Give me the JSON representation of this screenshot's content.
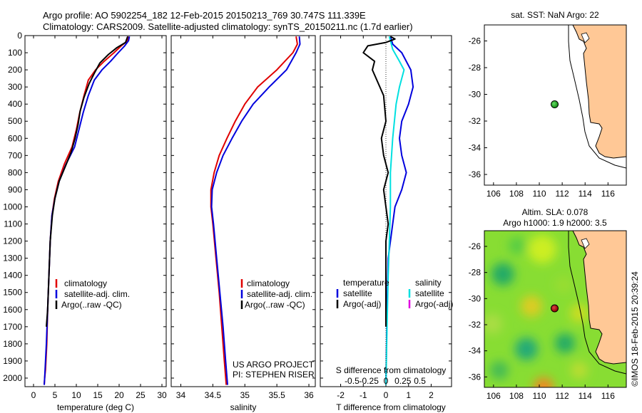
{
  "header": {
    "line1": "Argo profile: AO 5902254_182 12-Feb-2015 20150213_769 30.747S 111.339E",
    "line2": "Climatology: CARS2009. Satellite-adjusted climatology: synTS_20150211.nc (1.7d earlier)"
  },
  "colors": {
    "clim": "#e00000",
    "sat": "#0000dd",
    "argo": "#000000",
    "sat_s": "#00e0e0",
    "argo_s": "#e000e0",
    "land": "#ffc896",
    "float": "#22aa22"
  },
  "credit": {
    "project": "US ARGO PROJECT",
    "pi": "PI: STEPHEN RISER",
    "stamp": "©IMOS 18-Feb-2015 20:39:24"
  },
  "chart_data": [
    {
      "type": "line",
      "id": "temperature",
      "xlabel": "temperature (deg C)",
      "xlim": [
        -2,
        31
      ],
      "ylim": [
        2050,
        0
      ],
      "xticks": [
        0,
        5,
        10,
        15,
        20,
        25,
        30
      ],
      "yticks": [
        0,
        100,
        200,
        300,
        400,
        500,
        600,
        700,
        800,
        900,
        1000,
        1100,
        1200,
        1300,
        1400,
        1500,
        1600,
        1700,
        1800,
        1900,
        2000
      ],
      "legend": [
        "climatology",
        "satellite-adj. clim.",
        "Argo(..raw -QC)"
      ],
      "series": [
        {
          "name": "climatology",
          "color": "#e00000",
          "x": [
            22.2,
            22.0,
            20.5,
            18.8,
            16.5,
            14.5,
            12.8,
            11.8,
            10.8,
            10.0,
            9.0,
            7.2,
            5.8,
            4.9,
            4.3,
            3.9,
            3.6,
            3.3,
            3.1,
            2.8,
            2.6,
            2.5
          ],
          "y": [
            5,
            30,
            60,
            100,
            150,
            200,
            260,
            350,
            450,
            550,
            650,
            750,
            850,
            950,
            1050,
            1200,
            1400,
            1600,
            1800,
            1950,
            2000,
            2040
          ]
        },
        {
          "name": "satellite-adj. clim.",
          "color": "#0000dd",
          "x": [
            22.4,
            22.2,
            21.3,
            19.8,
            18.0,
            16.0,
            14.2,
            12.8,
            11.6,
            10.6,
            9.6,
            7.6,
            6.0,
            5.0,
            4.3,
            3.9,
            3.6,
            3.3,
            3.0,
            2.7,
            2.6,
            2.5
          ],
          "y": [
            5,
            30,
            60,
            100,
            150,
            200,
            260,
            350,
            450,
            550,
            650,
            750,
            850,
            950,
            1050,
            1200,
            1400,
            1600,
            1800,
            1950,
            2000,
            2040
          ]
        },
        {
          "name": "Argo(..raw -QC)",
          "color": "#000000",
          "x": [
            22.0,
            21.5,
            19.5,
            17.5,
            15.5,
            14.2,
            13.0,
            11.8,
            10.9,
            10.4,
            9.7,
            8.8,
            7.5,
            6.0,
            5.0,
            4.4,
            3.9,
            3.6,
            3.3,
            3.0
          ],
          "y": [
            5,
            40,
            70,
            110,
            160,
            220,
            280,
            360,
            440,
            520,
            600,
            680,
            760,
            850,
            950,
            1050,
            1200,
            1400,
            1600,
            1700
          ]
        }
      ]
    },
    {
      "type": "line",
      "id": "salinity",
      "xlabel": "salinity",
      "xlim": [
        33.85,
        36.1
      ],
      "ylim": [
        2050,
        0
      ],
      "xticks": [
        34,
        34.5,
        35,
        35.5,
        36
      ],
      "legend": [
        "climatology",
        "satellite-adj. clim.",
        "Argo(..raw -QC)"
      ],
      "series": [
        {
          "name": "climatology",
          "color": "#e00000",
          "x": [
            35.8,
            35.82,
            35.75,
            35.5,
            35.2,
            35.0,
            34.85,
            34.72,
            34.6,
            34.52,
            34.47,
            34.47,
            34.5,
            34.55,
            34.6,
            34.64,
            34.68,
            34.71
          ],
          "y": [
            5,
            50,
            100,
            200,
            300,
            400,
            500,
            600,
            700,
            800,
            900,
            1000,
            1100,
            1300,
            1500,
            1700,
            1900,
            2040
          ]
        },
        {
          "name": "satellite-adj. clim.",
          "color": "#0000dd",
          "x": [
            35.85,
            35.86,
            35.8,
            35.65,
            35.38,
            35.13,
            34.95,
            34.8,
            34.66,
            34.56,
            34.49,
            34.48,
            34.51,
            34.56,
            34.61,
            34.66,
            34.7,
            34.73
          ],
          "y": [
            5,
            50,
            100,
            200,
            300,
            400,
            500,
            600,
            700,
            800,
            900,
            1000,
            1100,
            1300,
            1500,
            1700,
            1900,
            2040
          ]
        }
      ]
    },
    {
      "type": "line",
      "id": "difference",
      "xlabel": "T difference from climatology",
      "xlabel_top": "S difference from climatology",
      "xlim": [
        -2.9,
        2.9
      ],
      "ylim": [
        2050,
        0
      ],
      "xticks": [
        -2,
        -1,
        0,
        1,
        2
      ],
      "xticks_s": [
        "-0.5",
        "-0.25",
        "0",
        "0.25",
        "0.5"
      ],
      "legend_t": [
        "temperature",
        "satellite",
        "Argo(-adj)"
      ],
      "legend_s": [
        "salinity",
        "satellite",
        "Argo(-adj)"
      ],
      "series": [
        {
          "name": "satellite",
          "color": "#0000dd",
          "x": [
            0.2,
            0.3,
            0.7,
            1.1,
            1.2,
            1.0,
            0.7,
            0.6,
            0.7,
            0.9,
            0.7,
            0.4,
            0.3,
            0.1,
            0.05,
            0.0
          ],
          "y": [
            5,
            50,
            100,
            200,
            300,
            400,
            500,
            600,
            700,
            800,
            900,
            1000,
            1100,
            1300,
            1600,
            2040
          ]
        },
        {
          "name": "satellite",
          "color": "#00e0e0",
          "x": [
            0.15,
            0.3,
            0.6,
            0.8,
            0.6,
            0.45,
            0.3,
            0.2,
            0.2,
            0.15,
            0.1,
            0.05,
            0.0
          ],
          "y": [
            5,
            80,
            150,
            200,
            300,
            400,
            600,
            800,
            1000,
            1200,
            1400,
            1700,
            2040
          ]
        },
        {
          "name": "Argo(-adj)",
          "color": "#000000",
          "x": [
            0.2,
            0.4,
            0.0,
            -0.8,
            -1.0,
            -0.5,
            -0.6,
            -0.1,
            0.0,
            -0.2,
            -0.1,
            0.1,
            -0.1,
            0.0,
            0.1,
            0.0,
            0.0
          ],
          "y": [
            5,
            20,
            40,
            60,
            100,
            150,
            200,
            350,
            500,
            600,
            700,
            800,
            900,
            1000,
            1100,
            1200,
            1700
          ]
        }
      ]
    }
  ],
  "map_sst": {
    "title": "sat. SST: NaN  Argo: 22",
    "lon_ticks": [
      106,
      108,
      110,
      112,
      114,
      116
    ],
    "lat_ticks": [
      -26,
      -28,
      -30,
      -32,
      -34,
      -36
    ],
    "float_lon": 111.339,
    "float_lat": -30.747
  },
  "map_sla": {
    "title_line1": "Altim. SLA: 0.078",
    "title_line2": "Argo h1000: 1.9 h2000: 3.5",
    "lon_ticks": [
      106,
      108,
      110,
      112,
      114,
      116
    ],
    "lat_ticks": [
      -26,
      -28,
      -30,
      -32,
      -34,
      -36
    ],
    "float_lon": 111.339,
    "float_lat": -30.747
  }
}
